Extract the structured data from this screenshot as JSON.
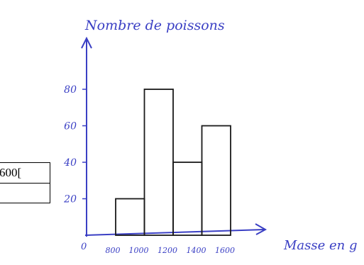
{
  "chart_data": {
    "type": "bar",
    "title": "Nombre de poissons",
    "xlabel": "Masse en g",
    "ylabel": "",
    "origin_label": "0",
    "x_tick_labels": [
      "800",
      "1000",
      "1200",
      "1400",
      "1600"
    ],
    "y_tick_labels": [
      "20",
      "40",
      "60",
      "80"
    ],
    "bins": [
      {
        "from": 800,
        "to": 1000,
        "value": 20
      },
      {
        "from": 1000,
        "to": 1200,
        "value": 80
      },
      {
        "from": 1200,
        "to": 1400,
        "value": 40
      },
      {
        "from": 1400,
        "to": 1600,
        "value": 60
      }
    ],
    "xlim": [
      0,
      1600
    ],
    "ylim": [
      0,
      100
    ],
    "grid": false,
    "legend": "none",
    "colors": {
      "ink": "#3a3fc4",
      "bars": "#1a1a1a"
    }
  },
  "table_fragment": {
    "text": "600["
  }
}
